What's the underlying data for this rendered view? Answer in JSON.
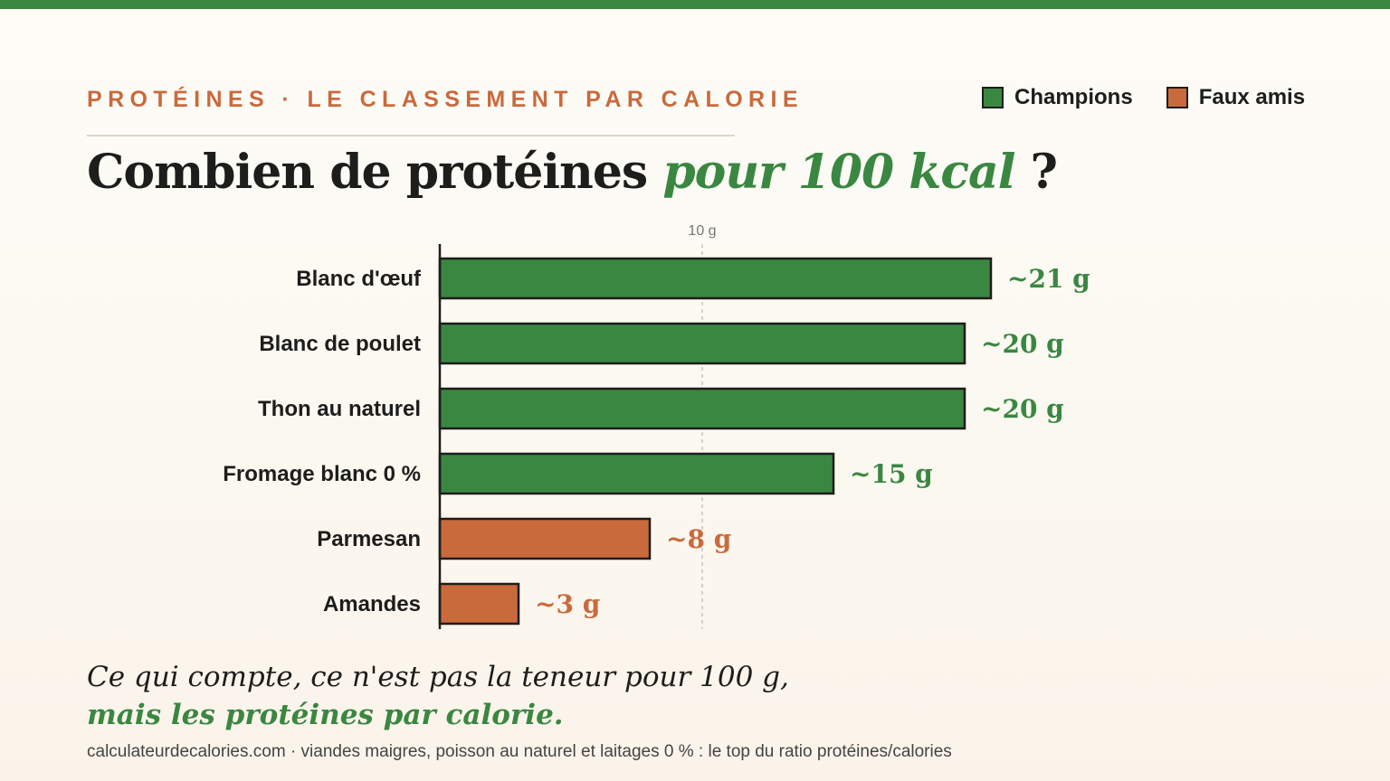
{
  "header": {
    "eyebrow": "PROTÉINES · LE CLASSEMENT PAR CALORIE",
    "title_main": "Combien de protéines ",
    "title_accent": "pour 100 kcal",
    "title_end": " ?"
  },
  "legend": {
    "items": [
      {
        "label": "Champions",
        "color": "#3a8741"
      },
      {
        "label": "Faux amis",
        "color": "#c96a3c"
      }
    ]
  },
  "chart_data": {
    "type": "bar",
    "orientation": "horizontal",
    "categories": [
      "Blanc d'œuf",
      "Blanc de poulet",
      "Thon au naturel",
      "Fromage blanc 0 %",
      "Parmesan",
      "Amandes"
    ],
    "values": [
      21,
      20,
      20,
      15,
      8,
      3
    ],
    "value_labels": [
      "~21 g",
      "~20 g",
      "~20 g",
      "~15 g",
      "~8 g",
      "~3 g"
    ],
    "groups": [
      "Champions",
      "Champions",
      "Champions",
      "Champions",
      "Faux amis",
      "Faux amis"
    ],
    "reference_line": {
      "value": 10,
      "label": "10 g"
    },
    "xlim": [
      0,
      21
    ],
    "grid": false,
    "legend_position": "top-right",
    "colors": {
      "Champions": "#3a8741",
      "Faux amis": "#c96a3c"
    }
  },
  "footer": {
    "note_line1": "Ce qui compte, ce n'est pas la teneur pour 100 g,",
    "note_line2": "mais les protéines par calorie.",
    "source": "calculateurdecalories.com · viandes maigres, poisson au naturel et laitages 0 % : le top du ratio protéines/calories"
  }
}
